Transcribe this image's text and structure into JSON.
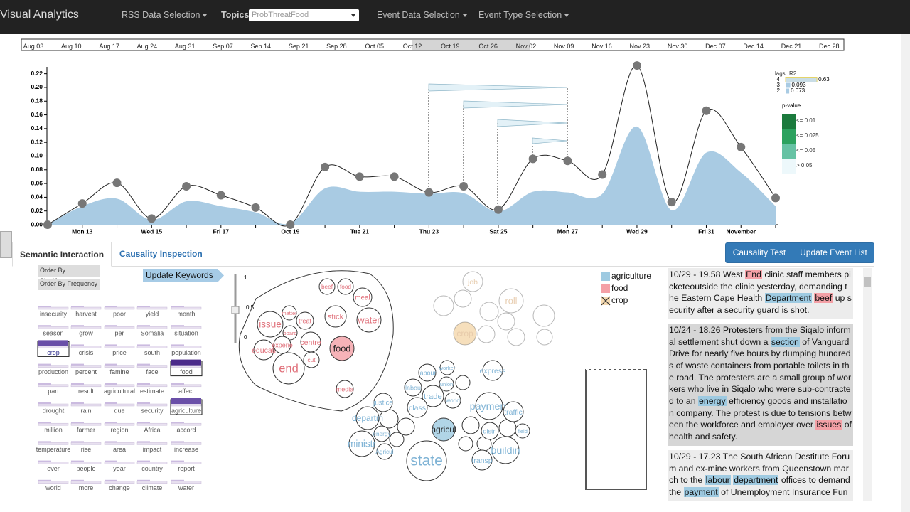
{
  "navbar": {
    "title": "Visual Analytics",
    "menus": [
      "RSS Data Selection",
      "Event Data Selection",
      "Event Type Selection"
    ],
    "topics_label": "Topics",
    "topics_value": "ProbThreatFood"
  },
  "timeline": {
    "labels": [
      "Aug 03",
      "Aug 10",
      "Aug 17",
      "Aug 24",
      "Aug 31",
      "Sep 07",
      "Sep 14",
      "Sep 21",
      "Sep 28",
      "Oct 05",
      "Oct 12",
      "Oct 19",
      "Oct 26",
      "Nov 02",
      "Nov 09",
      "Nov 16",
      "Nov 23",
      "Nov 30",
      "Dec 07",
      "Dec 14",
      "Dec 21",
      "Dec 28"
    ]
  },
  "chart_data": {
    "type": "line",
    "categories": [
      null,
      "Mon 13",
      null,
      "Wed 15",
      null,
      "Fri 17",
      null,
      "Oct 19",
      null,
      "Tue 21",
      null,
      "Thu 23",
      null,
      "Sat 25",
      null,
      "Mon 27",
      null,
      "Wed 29",
      null,
      "Fri 31",
      "November",
      null
    ],
    "series": [
      {
        "color": "#222222",
        "values": [
          0.0,
          0.031,
          0.061,
          0.009,
          0.056,
          0.043,
          0.025,
          0.0,
          0.084,
          0.07,
          0.07,
          0.047,
          0.056,
          0.022,
          0.096,
          0.093,
          0.073,
          0.232,
          0.033,
          0.166,
          0.113,
          0.039
        ]
      },
      {
        "color": "#a9cbe3",
        "values": [
          0.0,
          0.027,
          0.038,
          0.007,
          0.034,
          0.027,
          0.018,
          0.002,
          0.053,
          0.048,
          0.048,
          0.045,
          0.046,
          0.019,
          0.048,
          0.047,
          0.045,
          0.143,
          0.021,
          0.105,
          0.076,
          0.027
        ]
      }
    ],
    "ylim": [
      0,
      0.23
    ],
    "yticks": [
      {
        "value": 0,
        "label": "0.00"
      },
      0.02,
      0.04,
      0.06,
      0.08,
      {
        "value": 0.1,
        "label": "0.10"
      },
      0.12,
      0.14,
      0.16,
      0.18,
      {
        "value": 0.2,
        "label": "0.20"
      },
      0.22
    ],
    "lags_title": "lags",
    "r2_title": "R2",
    "lags": [
      {
        "lag": 4,
        "r2": 0.63
      },
      {
        "lag": 3,
        "r2": 0.093
      },
      {
        "lag": 2,
        "r2": 0.073
      }
    ],
    "pvalue_title": "p-value",
    "pvalue_levels": [
      {
        "label": "<= 0.01",
        "color": "#1b7a3d"
      },
      {
        "label": "<= 0.025",
        "color": "#2ca25f"
      },
      {
        "label": "<= 0.05",
        "color": "#66c2a4"
      },
      {
        "label": "> 0.05",
        "color": "#edf8fb"
      }
    ]
  },
  "tabs": [
    "Semantic Interaction",
    "Causality Inspection"
  ],
  "buttons": [
    "Causality Test",
    "Update Event List"
  ],
  "keyword_panel": {
    "order_buttons": [
      "Order By Significance",
      "Order By Frequency"
    ],
    "keywords": [
      "insecurity",
      "harvest",
      "poor",
      "yield",
      "month",
      "season",
      "grow",
      "per",
      "Somalia",
      "situation",
      "crop",
      "crisis",
      "price",
      "south",
      "population",
      "production",
      "percent",
      "famine",
      "face",
      "food",
      "part",
      "result",
      "agricultural",
      "estimate",
      "affect",
      "drought",
      "rain",
      "due",
      "security",
      "agriculture",
      "million",
      "farmer",
      "region",
      "Africa",
      "accord",
      "temperature",
      "rise",
      "area",
      "impact",
      "increase",
      "over",
      "people",
      "year",
      "country",
      "report",
      "world",
      "more",
      "change",
      "climate",
      "water"
    ],
    "selected": [
      10,
      19,
      29
    ]
  },
  "word_cloud": {
    "update_button": "Update Keywords",
    "slider_ticks": [
      "1",
      "0.5",
      "0"
    ],
    "food_cluster": {
      "words": [
        "beef",
        "food",
        "meal",
        "issue",
        "matter",
        "treat",
        "stick",
        "water",
        "board",
        "centre",
        "educati",
        "experie",
        "cut",
        "end",
        "food",
        "media"
      ],
      "highlighted": [
        14
      ]
    },
    "agriculture_cluster": {
      "words": [
        "labour",
        "worker",
        "express",
        "union",
        "labou",
        "trade",
        "world",
        "class",
        "justice",
        "payment",
        "traffic",
        "departm",
        "energy",
        "ministr",
        "agricul",
        "distri",
        "field",
        "buildin",
        "Agricul",
        "transp",
        "state"
      ],
      "highlighted": [
        14
      ]
    },
    "faded_cluster": {
      "words": [
        "job",
        "roll",
        "crop"
      ],
      "highlighted": [
        2
      ]
    }
  },
  "legend": [
    {
      "name": "agriculture",
      "color": "#9ecae1"
    },
    {
      "name": "food",
      "color": "#f4a0a6"
    },
    {
      "name": "crop",
      "color": "#e6a23c"
    }
  ],
  "events": [
    {
      "segments": [
        "10/29 - 19.58 West ",
        {
          "text": "End",
          "hl": "food"
        },
        " clinic staff members picketeoutside the clinic yesterday, demanding the Eastern Cape Health ",
        {
          "text": "Department",
          "hl": "agriculture"
        },
        " ",
        {
          "text": "beef",
          "hl": "food"
        },
        " up security after a security guard is shot."
      ]
    },
    {
      "segments": [
        "10/24 - 18.26 Protesters from the Siqalo informal settlement shut down a ",
        {
          "text": "section",
          "hl": "agriculture"
        },
        " of Vanguard Drive for nearly five hours by dumping hundreds of waste containers from portable toilets in the road. The protesters are a small group of workers who live in Siqalo who were sub-contracted to an ",
        {
          "text": "energy",
          "hl": "agriculture"
        },
        " efficiency goods and installation company. The protest is due to tensions between the workforce and employer over ",
        {
          "text": "issues",
          "hl": "food"
        },
        " of health and safety."
      ]
    },
    {
      "segments": [
        "10/29 - 17.23 The South African Destitute Forum and ex-mine workers from Queenstown march to the ",
        {
          "text": "labour",
          "hl": "agriculture"
        },
        " ",
        {
          "text": "department",
          "hl": "agriculture"
        },
        " offices to demand the ",
        {
          "text": "payment",
          "hl": "agriculture"
        },
        " of Unemployment Insurance Funds."
      ]
    }
  ]
}
